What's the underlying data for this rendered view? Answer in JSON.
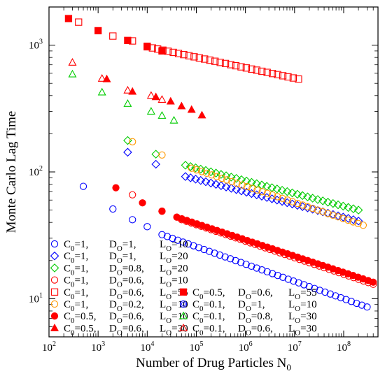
{
  "chart_data": {
    "type": "scatter",
    "title": "",
    "xlabel": "Number of Drug Particles  N",
    "xlabel_sub": "0",
    "ylabel": "Monte Carlo Lag Time",
    "x_scale": "log",
    "y_scale": "log",
    "xlim": [
      100,
      500000000
    ],
    "ylim": [
      5,
      2000
    ],
    "x_ticks": [
      {
        "v": 100,
        "b": "10",
        "e": "2"
      },
      {
        "v": 1000,
        "b": "10",
        "e": "3"
      },
      {
        "v": 10000,
        "b": "10",
        "e": "4"
      },
      {
        "v": 100000,
        "b": "10",
        "e": "5"
      },
      {
        "v": 1000000,
        "b": "10",
        "e": "6"
      },
      {
        "v": 10000000,
        "b": "10",
        "e": "7"
      },
      {
        "v": 100000000,
        "b": "10",
        "e": "8"
      }
    ],
    "y_ticks": [
      {
        "v": 10,
        "b": "10",
        "e": "1"
      },
      {
        "v": 100,
        "b": "10",
        "e": "2"
      },
      {
        "v": 1000,
        "b": "10",
        "e": "3"
      }
    ],
    "grid": false,
    "legend_placement": "bottom-left",
    "series": [
      {
        "name": "C0=1, DO=1, LO=10",
        "lab": {
          "c": "1",
          "d": "1",
          "l": "10"
        },
        "color": "#0000ff",
        "marker": "circle",
        "filled": false,
        "legend": [
          0,
          0
        ],
        "pts": [
          [
            500,
            77
          ],
          [
            2000,
            51
          ],
          [
            5000,
            42
          ],
          [
            10000,
            37
          ]
        ],
        "line": {
          "x0": 20000,
          "x1": 300000000,
          "y0": 32,
          "y1": 8.6,
          "n": 40
        }
      },
      {
        "name": "C0=1, DO=1, LO=20",
        "lab": {
          "c": "1",
          "d": "1",
          "l": "20"
        },
        "color": "#0000ff",
        "marker": "diamond",
        "filled": false,
        "legend": [
          0,
          1
        ],
        "pts": [
          [
            4000,
            143
          ],
          [
            15000,
            115
          ]
        ],
        "line": {
          "x0": 60000,
          "x1": 200000000,
          "y0": 92,
          "y1": 41,
          "n": 35
        }
      },
      {
        "name": "C0=1, DO=0.8, LO=20",
        "lab": {
          "c": "1",
          "d": "0.8",
          "l": "20"
        },
        "color": "#00cc00",
        "marker": "diamond",
        "filled": false,
        "legend": [
          0,
          2
        ],
        "pts": [
          [
            4000,
            177
          ],
          [
            15000,
            138
          ]
        ],
        "line": {
          "x0": 60000,
          "x1": 200000000,
          "y0": 113,
          "y1": 50,
          "n": 35
        }
      },
      {
        "name": "C0=1, DO=0.6, LO=10",
        "lab": {
          "c": "1",
          "d": "0.6",
          "l": "10"
        },
        "color": "#ff0000",
        "marker": "circle",
        "filled": false,
        "legend": [
          0,
          3
        ],
        "pts": [
          [
            5000,
            66
          ],
          [
            20000,
            49
          ]
        ],
        "line": {
          "x0": 50000,
          "x1": 400000000,
          "y0": 42,
          "y1": 13,
          "n": 40
        }
      },
      {
        "name": "C0=1, DO=0.6, LO=55",
        "lab": {
          "c": "1",
          "d": "0.6",
          "l": "55"
        },
        "color": "#ff0000",
        "marker": "square",
        "filled": false,
        "legend": [
          0,
          4
        ],
        "pts": [
          [
            400,
            1520
          ],
          [
            2000,
            1180
          ],
          [
            5000,
            1080
          ]
        ],
        "line": {
          "x0": 10000,
          "x1": 12000000,
          "y0": 970,
          "y1": 540,
          "n": 30
        }
      },
      {
        "name": "C0=1, DO=0.2, LO=10",
        "lab": {
          "c": "1",
          "d": "0.2",
          "l": "10"
        },
        "color": "#ff9900",
        "marker": "circle",
        "filled": false,
        "legend": [
          0,
          5
        ],
        "pts": [
          [
            5000,
            173
          ],
          [
            20000,
            136
          ]
        ],
        "line": {
          "x0": 80000,
          "x1": 250000000,
          "y0": 107,
          "y1": 38,
          "n": 35
        }
      },
      {
        "name": "C0=0.5, DO=0.6, LO=10",
        "lab": {
          "c": "0.5",
          "d": "0.6",
          "l": "10"
        },
        "color": "#ff0000",
        "marker": "circle",
        "filled": true,
        "legend": [
          0,
          6
        ],
        "pts": [
          [
            2300,
            75
          ],
          [
            8000,
            57
          ],
          [
            20000,
            49
          ]
        ],
        "line": {
          "x0": 40000,
          "x1": 400000000,
          "y0": 44,
          "y1": 13.5,
          "n": 40
        }
      },
      {
        "name": "C0=0.5, DO=0.6, LO=30",
        "lab": {
          "c": "0.5",
          "d": "0.6",
          "l": "30"
        },
        "color": "#ff0000",
        "marker": "triangle",
        "filled": true,
        "legend": [
          0,
          7
        ],
        "pts": [
          [
            1500,
            540
          ],
          [
            5000,
            430
          ],
          [
            15000,
            390
          ],
          [
            30000,
            360
          ],
          [
            50000,
            330
          ],
          [
            80000,
            310
          ],
          [
            130000,
            280
          ]
        ],
        "line": null
      },
      {
        "name": "C0=0.5, DO=0.6, LO=55",
        "lab": {
          "c": "0.5",
          "d": "0.6",
          "l": "55"
        },
        "color": "#ff0000",
        "marker": "square",
        "filled": true,
        "legend": [
          1,
          4
        ],
        "pts": [
          [
            250,
            1620
          ],
          [
            1000,
            1300
          ],
          [
            4000,
            1090
          ],
          [
            10000,
            980
          ],
          [
            20000,
            900
          ]
        ],
        "line": null
      },
      {
        "name": "C0=0.1, DO=1, LO=10",
        "lab": {
          "c": "0.1",
          "d": "1",
          "l": "10"
        },
        "color": "#0000ff",
        "marker": "hexcircle",
        "filled": false,
        "legend": [
          1,
          5
        ],
        "pts": [],
        "line": null
      },
      {
        "name": "C0=0.1, DO=0.8, LO=30",
        "lab": {
          "c": "0.1",
          "d": "0.8",
          "l": "30"
        },
        "color": "#00cc00",
        "marker": "triangle",
        "filled": false,
        "legend": [
          1,
          6
        ],
        "pts": [
          [
            300,
            590
          ],
          [
            1200,
            425
          ],
          [
            4000,
            345
          ],
          [
            12000,
            300
          ],
          [
            20000,
            278
          ],
          [
            35000,
            255
          ]
        ],
        "line": null
      },
      {
        "name": "C0=0.1, DO=0.6, LO=30",
        "lab": {
          "c": "0.1",
          "d": "0.6",
          "l": "30"
        },
        "color": "#ff0000",
        "marker": "triangle",
        "filled": false,
        "legend": [
          1,
          7
        ],
        "pts": [
          [
            300,
            730
          ],
          [
            1200,
            545
          ],
          [
            4000,
            440
          ],
          [
            12000,
            400
          ],
          [
            20000,
            372
          ]
        ],
        "line": null
      }
    ]
  }
}
